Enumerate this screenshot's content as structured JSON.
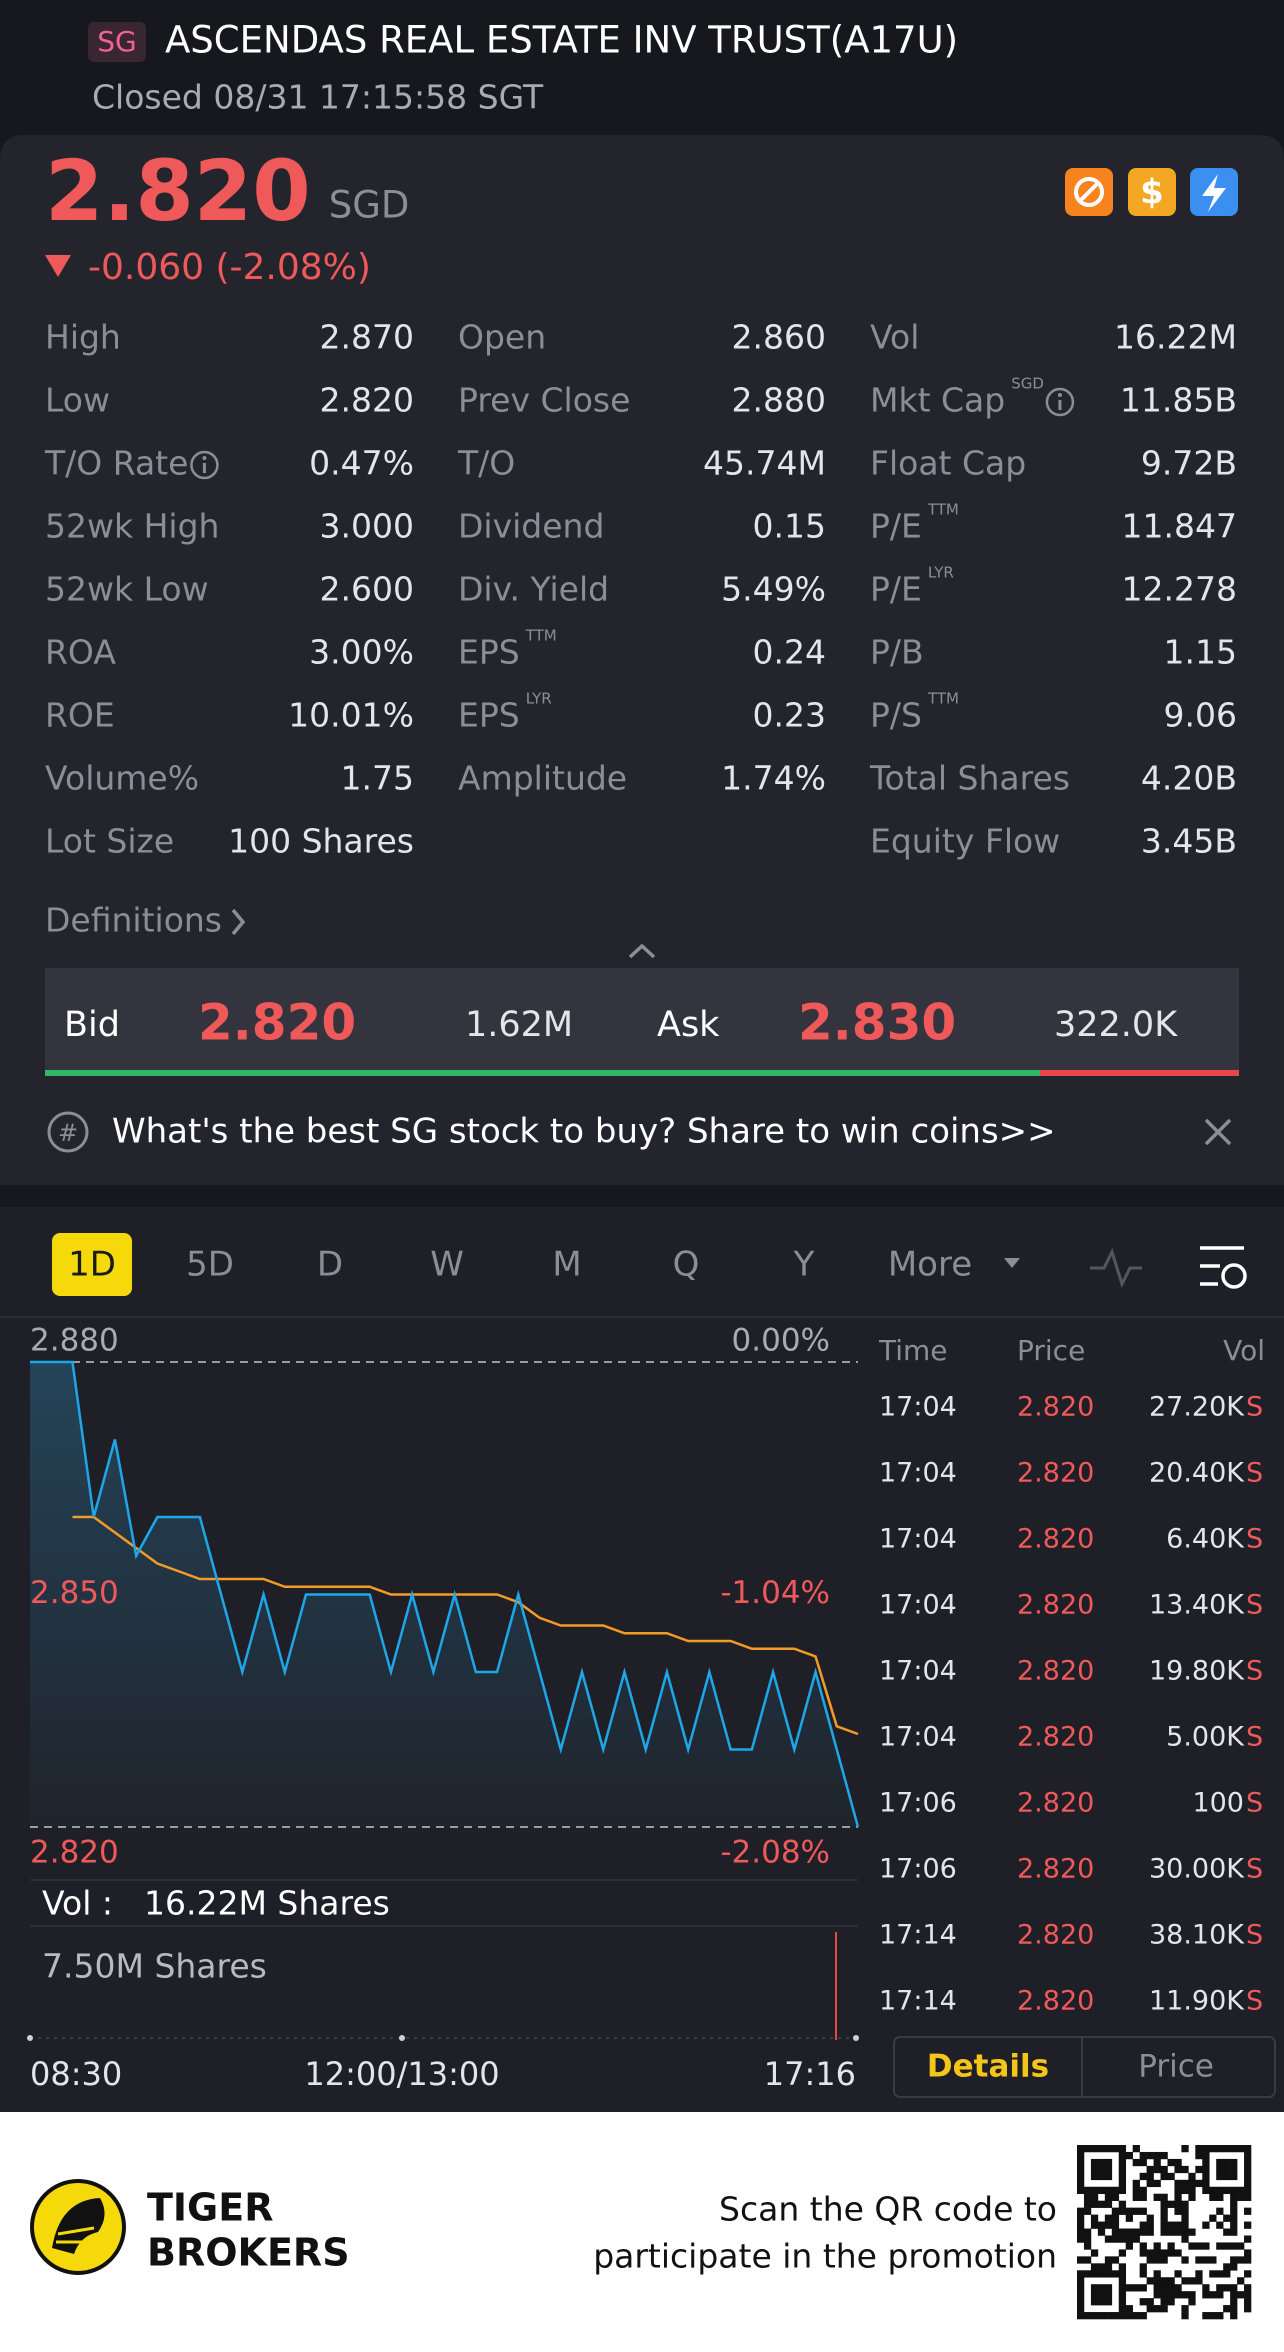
{
  "header": {
    "badge": "SG",
    "title": "ASCENDAS REAL ESTATE INV TRUST(A17U)",
    "status": "Closed 08/31 17:15:58 SGT"
  },
  "quote": {
    "price": "2.820",
    "currency": "SGD",
    "change": "-0.060 (-2.08%)"
  },
  "stats": [
    [
      {
        "label": "High",
        "value": "2.870"
      },
      {
        "label": "Open",
        "value": "2.860"
      },
      {
        "label": "Vol",
        "value": "16.22M"
      }
    ],
    [
      {
        "label": "Low",
        "value": "2.820"
      },
      {
        "label": "Prev Close",
        "value": "2.880"
      },
      {
        "label": "Mkt Cap",
        "sup": "SGD",
        "info": true,
        "value": "11.85B"
      }
    ],
    [
      {
        "label": "T/O Rate",
        "info": true,
        "value": "0.47%"
      },
      {
        "label": "T/O",
        "value": "45.74M"
      },
      {
        "label": "Float Cap",
        "value": "9.72B"
      }
    ],
    [
      {
        "label": "52wk High",
        "value": "3.000"
      },
      {
        "label": "Dividend",
        "value": "0.15"
      },
      {
        "label": "P/E",
        "sup": "TTM",
        "value": "11.847"
      }
    ],
    [
      {
        "label": "52wk Low",
        "value": "2.600"
      },
      {
        "label": "Div. Yield",
        "value": "5.49%"
      },
      {
        "label": "P/E",
        "sup": "LYR",
        "value": "12.278"
      }
    ],
    [
      {
        "label": "ROA",
        "value": "3.00%"
      },
      {
        "label": "EPS",
        "sup": "TTM",
        "value": "0.24"
      },
      {
        "label": "P/B",
        "value": "1.15"
      }
    ],
    [
      {
        "label": "ROE",
        "value": "10.01%"
      },
      {
        "label": "EPS",
        "sup": "LYR",
        "value": "0.23"
      },
      {
        "label": "P/S",
        "sup": "TTM",
        "value": "9.06"
      }
    ],
    [
      {
        "label": "Volume%",
        "value": "1.75"
      },
      {
        "label": "Amplitude",
        "value": "1.74%"
      },
      {
        "label": "Total Shares",
        "value": "4.20B"
      }
    ],
    [
      {
        "label": "Lot Size",
        "value": "100 Shares"
      },
      null,
      {
        "label": "Equity Flow",
        "value": "3.45B"
      }
    ]
  ],
  "definitions": "Definitions",
  "bid_ask": {
    "bid_label": "Bid",
    "bid": "2.820",
    "bid_vol": "1.62M",
    "ask_label": "Ask",
    "ask": "2.830",
    "ask_vol": "322.0K"
  },
  "promo": "What's the best SG stock to buy? Share to win coins>>",
  "period_tabs": [
    "1D",
    "5D",
    "D",
    "W",
    "M",
    "Q",
    "Y",
    "More"
  ],
  "chart_data": {
    "type": "line",
    "ylim": [
      2.82,
      2.88
    ],
    "yticks": [
      {
        "value": 2.88,
        "label": "2.880"
      },
      {
        "value": 2.85,
        "label": "2.850"
      },
      {
        "value": 2.82,
        "label": "2.820"
      }
    ],
    "y2lim": [
      -2.08,
      0
    ],
    "y2ticks": [
      {
        "value": 0,
        "label": "0.00%"
      },
      {
        "value": -1.04,
        "label": "-1.04%"
      },
      {
        "value": -2.08,
        "label": "-2.08%"
      }
    ],
    "time_labels": [
      "08:30",
      "12:00/13:00",
      "17:16"
    ],
    "price_color": "#1ea7e8",
    "avg_color": "#f39a27",
    "price_values": [
      2.88,
      2.88,
      2.88,
      2.86,
      2.87,
      2.855,
      2.86,
      2.86,
      2.86,
      2.85,
      2.84,
      2.85,
      2.84,
      2.85,
      2.85,
      2.85,
      2.85,
      2.84,
      2.85,
      2.84,
      2.85,
      2.84,
      2.84,
      2.85,
      2.84,
      2.83,
      2.84,
      2.83,
      2.84,
      2.83,
      2.84,
      2.83,
      2.84,
      2.83,
      2.83,
      2.84,
      2.83,
      2.84,
      2.83,
      2.82
    ],
    "avg_values": [
      null,
      null,
      2.86,
      2.86,
      2.858,
      2.856,
      2.854,
      2.853,
      2.852,
      2.852,
      2.852,
      2.852,
      2.851,
      2.851,
      2.851,
      2.851,
      2.851,
      2.85,
      2.85,
      2.85,
      2.85,
      2.85,
      2.85,
      2.849,
      2.847,
      2.846,
      2.846,
      2.846,
      2.845,
      2.845,
      2.845,
      2.844,
      2.844,
      2.844,
      2.843,
      2.843,
      2.843,
      2.842,
      2.833,
      2.832
    ]
  },
  "volume": {
    "label": "Vol :",
    "total": "16.22M Shares",
    "max": "7.50M Shares"
  },
  "trades": {
    "headers": [
      "Time",
      "Price",
      "Vol"
    ],
    "rows": [
      [
        "17:04",
        "2.820",
        "27.20K",
        "S"
      ],
      [
        "17:04",
        "2.820",
        "20.40K",
        "S"
      ],
      [
        "17:04",
        "2.820",
        "6.40K",
        "S"
      ],
      [
        "17:04",
        "2.820",
        "13.40K",
        "S"
      ],
      [
        "17:04",
        "2.820",
        "19.80K",
        "S"
      ],
      [
        "17:04",
        "2.820",
        "5.00K",
        "S"
      ],
      [
        "17:06",
        "2.820",
        "100",
        "S"
      ],
      [
        "17:06",
        "2.820",
        "30.00K",
        "S"
      ],
      [
        "17:14",
        "2.820",
        "38.10K",
        "S"
      ],
      [
        "17:14",
        "2.820",
        "11.90K",
        "S"
      ]
    ]
  },
  "detail_tabs": [
    "Details",
    "Price"
  ],
  "footer": {
    "brand": [
      "TIGER",
      "BROKERS"
    ],
    "promo": [
      "Scan the QR code to",
      "participate in the promotion"
    ]
  }
}
